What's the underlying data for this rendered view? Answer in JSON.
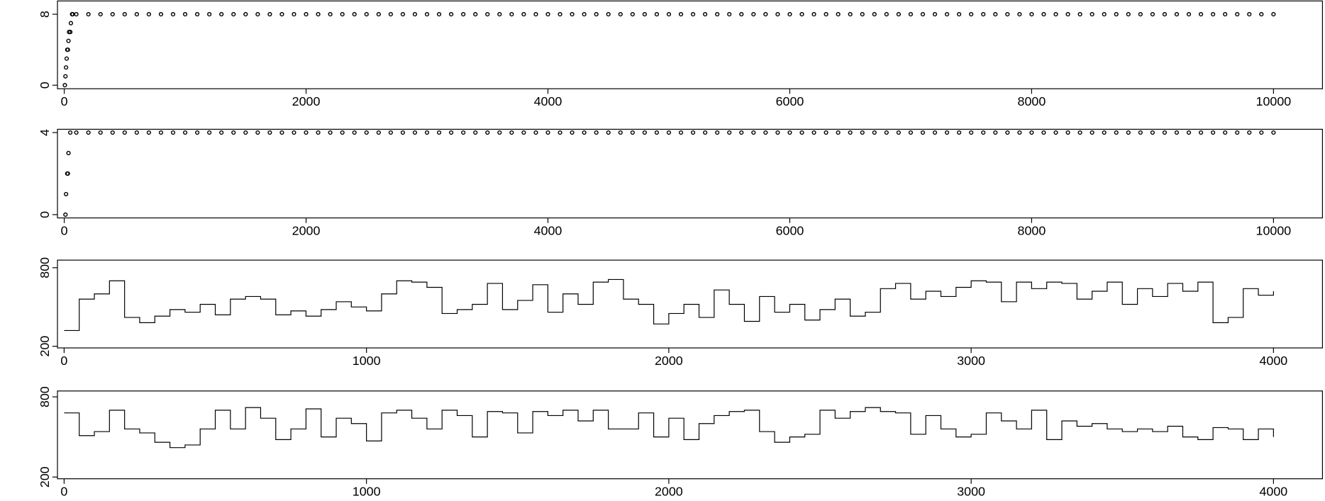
{
  "chart_data": [
    {
      "type": "scatter",
      "color": "#000000",
      "xlim": [
        -56,
        10405
      ],
      "ylim": [
        -0.4,
        9.5
      ],
      "xticks": [
        0,
        2000,
        4000,
        6000,
        8000,
        10000
      ],
      "yticks": [
        0,
        8
      ],
      "x": [
        5,
        10,
        15,
        20,
        25,
        30,
        35,
        40,
        50,
        55,
        65,
        70,
        100,
        200,
        300,
        400,
        500,
        600,
        700,
        800,
        900,
        1000,
        1100,
        1200,
        1300,
        1400,
        1500,
        1600,
        1700,
        1800,
        1900,
        2000,
        2100,
        2200,
        2300,
        2400,
        2500,
        2600,
        2700,
        2800,
        2900,
        3000,
        3100,
        3200,
        3300,
        3400,
        3500,
        3600,
        3700,
        3800,
        3900,
        4000,
        4100,
        4200,
        4300,
        4400,
        4500,
        4600,
        4700,
        4800,
        4900,
        5000,
        5100,
        5200,
        5300,
        5400,
        5500,
        5600,
        5700,
        5800,
        5900,
        6000,
        6100,
        6200,
        6300,
        6400,
        6500,
        6600,
        6700,
        6800,
        6900,
        7000,
        7100,
        7200,
        7300,
        7400,
        7500,
        7600,
        7700,
        7800,
        7900,
        8000,
        8100,
        8200,
        8300,
        8400,
        8500,
        8600,
        8700,
        8800,
        8900,
        9000,
        9100,
        9200,
        9300,
        9400,
        9500,
        9600,
        9700,
        9800,
        9900,
        10000
      ],
      "values": [
        0,
        1,
        2,
        3,
        4,
        4,
        5,
        6,
        6,
        7,
        8,
        8,
        8,
        8,
        8,
        8,
        8,
        8,
        8,
        8,
        8,
        8,
        8,
        8,
        8,
        8,
        8,
        8,
        8,
        8,
        8,
        8,
        8,
        8,
        8,
        8,
        8,
        8,
        8,
        8,
        8,
        8,
        8,
        8,
        8,
        8,
        8,
        8,
        8,
        8,
        8,
        8,
        8,
        8,
        8,
        8,
        8,
        8,
        8,
        8,
        8,
        8,
        8,
        8,
        8,
        8,
        8,
        8,
        8,
        8,
        8,
        8,
        8,
        8,
        8,
        8,
        8,
        8,
        8,
        8,
        8,
        8,
        8,
        8,
        8,
        8,
        8,
        8,
        8,
        8,
        8,
        8,
        8,
        8,
        8,
        8,
        8,
        8,
        8,
        8,
        8,
        8,
        8,
        8,
        8,
        8,
        8,
        8,
        8,
        8,
        8,
        8
      ]
    },
    {
      "type": "scatter",
      "color": "#000000",
      "xlim": [
        -56,
        10405
      ],
      "ylim": [
        -0.16,
        4.16
      ],
      "xticks": [
        0,
        2000,
        4000,
        6000,
        8000,
        10000
      ],
      "yticks": [
        0,
        4
      ],
      "x": [
        10,
        15,
        25,
        30,
        35,
        50,
        100,
        200,
        300,
        400,
        500,
        600,
        700,
        800,
        900,
        1000,
        1100,
        1200,
        1300,
        1400,
        1500,
        1600,
        1700,
        1800,
        1900,
        2000,
        2100,
        2200,
        2300,
        2400,
        2500,
        2600,
        2700,
        2800,
        2900,
        3000,
        3100,
        3200,
        3300,
        3400,
        3500,
        3600,
        3700,
        3800,
        3900,
        4000,
        4100,
        4200,
        4300,
        4400,
        4500,
        4600,
        4700,
        4800,
        4900,
        5000,
        5100,
        5200,
        5300,
        5400,
        5500,
        5600,
        5700,
        5800,
        5900,
        6000,
        6100,
        6200,
        6300,
        6400,
        6500,
        6600,
        6700,
        6800,
        6900,
        7000,
        7100,
        7200,
        7300,
        7400,
        7500,
        7600,
        7700,
        7800,
        7900,
        8000,
        8100,
        8200,
        8300,
        8400,
        8500,
        8600,
        8700,
        8800,
        8900,
        9000,
        9100,
        9200,
        9300,
        9400,
        9500,
        9600,
        9700,
        9800,
        9900,
        10000
      ],
      "values": [
        0,
        1,
        2,
        2,
        3,
        4,
        4,
        4,
        4,
        4,
        4,
        4,
        4,
        4,
        4,
        4,
        4,
        4,
        4,
        4,
        4,
        4,
        4,
        4,
        4,
        4,
        4,
        4,
        4,
        4,
        4,
        4,
        4,
        4,
        4,
        4,
        4,
        4,
        4,
        4,
        4,
        4,
        4,
        4,
        4,
        4,
        4,
        4,
        4,
        4,
        4,
        4,
        4,
        4,
        4,
        4,
        4,
        4,
        4,
        4,
        4,
        4,
        4,
        4,
        4,
        4,
        4,
        4,
        4,
        4,
        4,
        4,
        4,
        4,
        4,
        4,
        4,
        4,
        4,
        4,
        4,
        4,
        4,
        4,
        4,
        4,
        4,
        4,
        4,
        4,
        4,
        4,
        4,
        4,
        4,
        4,
        4,
        4,
        4,
        4,
        4,
        4,
        4,
        4,
        4,
        4
      ]
    },
    {
      "type": "line",
      "drawstyle": "steps-post",
      "color": "#000000",
      "xlim": [
        -22,
        4162
      ],
      "ylim": [
        187,
        858
      ],
      "xticks": [
        0,
        1000,
        2000,
        3000,
        4000
      ],
      "yticks": [
        200,
        800
      ],
      "x": [
        0,
        50,
        100,
        150,
        200,
        250,
        300,
        350,
        400,
        450,
        500,
        550,
        600,
        650,
        700,
        750,
        800,
        850,
        900,
        950,
        1000,
        1050,
        1100,
        1150,
        1200,
        1250,
        1300,
        1350,
        1400,
        1450,
        1500,
        1550,
        1600,
        1650,
        1700,
        1750,
        1800,
        1850,
        1900,
        1950,
        2000,
        2050,
        2100,
        2150,
        2200,
        2250,
        2300,
        2350,
        2400,
        2450,
        2500,
        2550,
        2600,
        2650,
        2700,
        2750,
        2800,
        2850,
        2900,
        2950,
        3000,
        3050,
        3100,
        3150,
        3200,
        3250,
        3300,
        3350,
        3400,
        3450,
        3500,
        3550,
        3600,
        3650,
        3700,
        3750,
        3800,
        3850,
        3900,
        3950,
        4000
      ],
      "values": [
        320,
        560,
        600,
        700,
        420,
        380,
        430,
        480,
        460,
        520,
        440,
        560,
        580,
        560,
        440,
        470,
        430,
        480,
        540,
        500,
        470,
        600,
        700,
        690,
        650,
        450,
        480,
        520,
        680,
        480,
        550,
        670,
        460,
        600,
        520,
        690,
        710,
        560,
        520,
        370,
        450,
        520,
        420,
        630,
        520,
        390,
        580,
        460,
        520,
        400,
        480,
        560,
        430,
        460,
        640,
        680,
        560,
        620,
        580,
        650,
        700,
        690,
        540,
        690,
        640,
        690,
        680,
        560,
        620,
        690,
        520,
        640,
        580,
        680,
        620,
        690,
        380,
        420,
        640,
        590,
        620
      ]
    },
    {
      "type": "line",
      "drawstyle": "steps-post",
      "color": "#000000",
      "xlim": [
        -22,
        4162
      ],
      "ylim": [
        187,
        844
      ],
      "xticks": [
        0,
        1000,
        2000,
        3000,
        4000
      ],
      "yticks": [
        200,
        800
      ],
      "x": [
        0,
        50,
        100,
        150,
        200,
        250,
        300,
        350,
        400,
        450,
        500,
        550,
        600,
        650,
        700,
        750,
        800,
        850,
        900,
        950,
        1000,
        1050,
        1100,
        1150,
        1200,
        1250,
        1300,
        1350,
        1400,
        1450,
        1500,
        1550,
        1600,
        1650,
        1700,
        1750,
        1800,
        1850,
        1900,
        1950,
        2000,
        2050,
        2100,
        2150,
        2200,
        2250,
        2300,
        2350,
        2400,
        2450,
        2500,
        2550,
        2600,
        2650,
        2700,
        2750,
        2800,
        2850,
        2900,
        2950,
        3000,
        3050,
        3100,
        3150,
        3200,
        3250,
        3300,
        3350,
        3400,
        3450,
        3500,
        3550,
        3600,
        3650,
        3700,
        3750,
        3800,
        3850,
        3900,
        3950,
        4000
      ],
      "values": [
        680,
        510,
        540,
        700,
        560,
        530,
        460,
        420,
        440,
        560,
        700,
        560,
        720,
        640,
        480,
        560,
        710,
        500,
        640,
        600,
        470,
        680,
        700,
        640,
        560,
        700,
        660,
        500,
        690,
        680,
        530,
        690,
        660,
        700,
        620,
        700,
        560,
        560,
        680,
        500,
        640,
        480,
        600,
        660,
        690,
        700,
        540,
        460,
        500,
        520,
        700,
        640,
        690,
        720,
        690,
        680,
        520,
        660,
        560,
        500,
        520,
        680,
        620,
        560,
        700,
        480,
        620,
        580,
        600,
        560,
        540,
        560,
        540,
        580,
        500,
        480,
        570,
        560,
        480,
        560,
        500
      ]
    }
  ]
}
